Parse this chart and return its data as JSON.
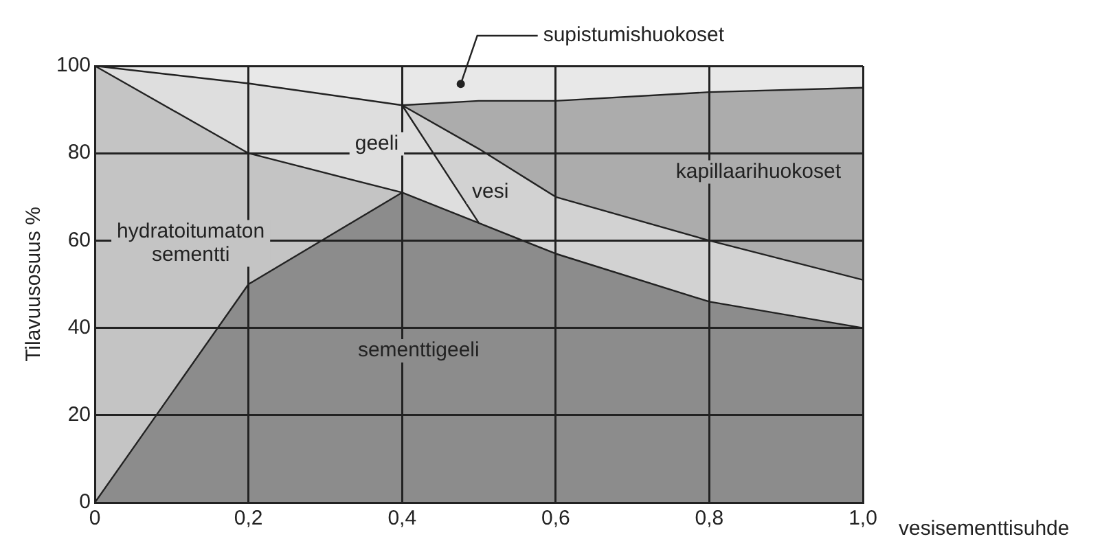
{
  "chart_data": {
    "type": "area",
    "stacked": true,
    "xlabel": "vesisementtisuhde",
    "ylabel": "Tilavuusosuus %",
    "x": [
      0,
      0.2,
      0.4,
      0.5,
      0.6,
      0.8,
      1.0
    ],
    "xlim": [
      0,
      1
    ],
    "xticks": [
      {
        "value": 0,
        "label": "0"
      },
      {
        "value": 0.2,
        "label": "0,2"
      },
      {
        "value": 0.4,
        "label": "0,4"
      },
      {
        "value": 0.6,
        "label": "0,6"
      },
      {
        "value": 0.8,
        "label": "0,8"
      },
      {
        "value": 1,
        "label": "1,0"
      }
    ],
    "ylim": [
      0,
      100
    ],
    "yticks": [
      0,
      20,
      40,
      60,
      80,
      100
    ],
    "grid": true,
    "legend": false,
    "series": [
      {
        "name": "sementtigeeli",
        "color": "#8c8c8c",
        "values": [
          0,
          50,
          71,
          64,
          57,
          46,
          40
        ]
      },
      {
        "name": "hydratoitumaton sementti",
        "color": "#c4c4c4",
        "values": [
          100,
          30,
          0,
          null,
          null,
          null,
          null
        ]
      },
      {
        "name": "geeli",
        "color": "#dedede",
        "values": [
          0,
          16,
          20,
          0,
          null,
          null,
          null
        ]
      },
      {
        "name": "vesi",
        "color": "#d2d2d2",
        "values": [
          null,
          null,
          0,
          17,
          13,
          14,
          11
        ]
      },
      {
        "name": "kapillaarihuokoset",
        "color": "#acacac",
        "values": [
          null,
          null,
          0,
          11,
          22,
          34,
          44
        ]
      },
      {
        "name": "supistumishuokoset",
        "color": "#e8e8e8",
        "values": [
          0,
          4,
          9,
          8,
          8,
          6,
          5
        ]
      }
    ]
  }
}
